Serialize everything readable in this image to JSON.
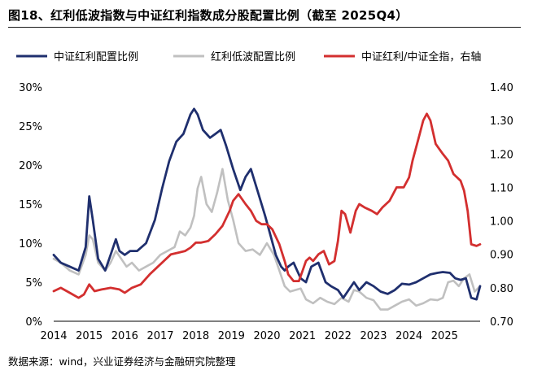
{
  "title": "图18、红利低波指数与中证红利指数成分股配置比例（截至 2025Q4）",
  "source": "数据来源：wind，兴业证券经济与金融研究院整理",
  "chart_data": {
    "type": "line",
    "title": "图18、红利低波指数与中证红利指数成分股配置比例（截至 2025Q4）",
    "legend_position": "top",
    "grid": false,
    "x_ticks": [
      "2014",
      "2015",
      "2016",
      "2017",
      "2018",
      "2019",
      "2020",
      "2021",
      "2022",
      "2023",
      "2024",
      "2025"
    ],
    "xlim": [
      2014.0,
      2026.0
    ],
    "y_left": {
      "ylim": [
        0,
        30
      ],
      "ticks": [
        "0%",
        "5%",
        "10%",
        "15%",
        "20%",
        "25%",
        "30%"
      ]
    },
    "y_right": {
      "ylim": [
        0.7,
        1.4
      ],
      "ticks": [
        "0.70",
        "0.80",
        "0.90",
        "1.00",
        "1.10",
        "1.20",
        "1.30",
        "1.40"
      ]
    },
    "series": [
      {
        "name": "中证红利配置比例",
        "color": "#1f2f6e",
        "axis": "left",
        "x": [
          2014.0,
          2014.2,
          2014.45,
          2014.7,
          2014.9,
          2015.0,
          2015.1,
          2015.25,
          2015.45,
          2015.6,
          2015.75,
          2015.85,
          2016.0,
          2016.15,
          2016.35,
          2016.6,
          2016.85,
          2017.05,
          2017.25,
          2017.45,
          2017.65,
          2017.85,
          2017.95,
          2018.05,
          2018.2,
          2018.4,
          2018.55,
          2018.7,
          2018.85,
          2019.05,
          2019.25,
          2019.4,
          2019.55,
          2019.75,
          2019.95,
          2020.1,
          2020.25,
          2020.4,
          2020.5,
          2020.6,
          2020.75,
          2020.85,
          2020.95,
          2021.1,
          2021.25,
          2021.45,
          2021.65,
          2021.8,
          2022.0,
          2022.15,
          2022.3,
          2022.45,
          2022.6,
          2022.8,
          2023.0,
          2023.2,
          2023.4,
          2023.6,
          2023.8,
          2024.0,
          2024.2,
          2024.4,
          2024.6,
          2024.8,
          2024.95,
          2025.15,
          2025.3,
          2025.45,
          2025.6,
          2025.75,
          2025.9,
          2026.0
        ],
        "values": [
          8.5,
          7.5,
          7.0,
          6.5,
          9.5,
          16.0,
          13.0,
          8.0,
          6.5,
          8.5,
          10.5,
          9.0,
          8.5,
          9.0,
          9.0,
          10.0,
          13.0,
          17.0,
          20.5,
          23.0,
          24.0,
          26.5,
          27.2,
          26.5,
          24.5,
          23.5,
          24.0,
          24.5,
          22.5,
          19.5,
          16.8,
          18.5,
          19.5,
          16.5,
          13.5,
          11.0,
          8.5,
          7.0,
          6.5,
          7.0,
          7.5,
          6.5,
          5.5,
          5.0,
          7.0,
          7.5,
          5.0,
          4.5,
          4.0,
          3.0,
          4.0,
          5.0,
          4.0,
          5.0,
          4.5,
          3.8,
          3.5,
          4.0,
          4.8,
          4.7,
          5.0,
          5.5,
          6.0,
          6.2,
          6.3,
          6.2,
          5.5,
          5.3,
          5.5,
          3.0,
          2.8,
          4.5
        ]
      },
      {
        "name": "红利低波配置比例",
        "color": "#c0c0c0",
        "axis": "left",
        "x": [
          2014.0,
          2014.2,
          2014.45,
          2014.7,
          2014.9,
          2015.0,
          2015.1,
          2015.25,
          2015.45,
          2015.6,
          2015.75,
          2015.9,
          2016.05,
          2016.2,
          2016.4,
          2016.6,
          2016.8,
          2017.0,
          2017.2,
          2017.4,
          2017.55,
          2017.7,
          2017.85,
          2017.95,
          2018.05,
          2018.15,
          2018.3,
          2018.45,
          2018.6,
          2018.75,
          2018.9,
          2019.05,
          2019.2,
          2019.4,
          2019.6,
          2019.8,
          2020.0,
          2020.2,
          2020.35,
          2020.5,
          2020.65,
          2020.8,
          2020.95,
          2021.1,
          2021.3,
          2021.5,
          2021.7,
          2021.9,
          2022.1,
          2022.3,
          2022.45,
          2022.6,
          2022.8,
          2023.0,
          2023.2,
          2023.4,
          2023.6,
          2023.8,
          2024.0,
          2024.2,
          2024.4,
          2024.6,
          2024.8,
          2024.95,
          2025.1,
          2025.25,
          2025.4,
          2025.55,
          2025.7,
          2025.85,
          2026.0
        ],
        "values": [
          8.0,
          7.5,
          6.5,
          6.0,
          8.5,
          11.0,
          10.5,
          7.5,
          6.5,
          7.5,
          9.0,
          8.0,
          7.0,
          7.5,
          6.5,
          7.0,
          7.5,
          8.5,
          9.0,
          9.5,
          11.5,
          11.0,
          12.0,
          13.5,
          17.0,
          18.5,
          15.0,
          14.0,
          16.5,
          19.5,
          15.5,
          13.0,
          10.0,
          9.0,
          9.2,
          8.5,
          10.0,
          8.5,
          6.5,
          4.5,
          3.8,
          4.0,
          4.2,
          2.8,
          2.3,
          3.0,
          2.5,
          2.2,
          3.0,
          2.5,
          4.0,
          3.8,
          3.0,
          2.7,
          1.5,
          1.5,
          2.0,
          2.5,
          2.8,
          2.0,
          2.3,
          2.8,
          2.7,
          3.0,
          5.0,
          5.2,
          4.5,
          5.5,
          6.0,
          3.8,
          4.5
        ]
      },
      {
        "name": "中证红利/中证全指，右轴",
        "color": "#d32f2f",
        "axis": "right",
        "x": [
          2014.0,
          2014.2,
          2014.45,
          2014.7,
          2014.85,
          2015.0,
          2015.15,
          2015.35,
          2015.6,
          2015.85,
          2016.0,
          2016.2,
          2016.45,
          2016.7,
          2016.9,
          2017.1,
          2017.3,
          2017.5,
          2017.7,
          2017.85,
          2018.0,
          2018.15,
          2018.35,
          2018.55,
          2018.75,
          2018.95,
          2019.05,
          2019.2,
          2019.4,
          2019.55,
          2019.7,
          2019.85,
          2020.0,
          2020.15,
          2020.35,
          2020.5,
          2020.6,
          2020.75,
          2020.9,
          2021.0,
          2021.1,
          2021.2,
          2021.3,
          2021.45,
          2021.6,
          2021.75,
          2021.9,
          2022.0,
          2022.1,
          2022.2,
          2022.35,
          2022.5,
          2022.6,
          2022.75,
          2022.95,
          2023.1,
          2023.25,
          2023.45,
          2023.65,
          2023.85,
          2024.0,
          2024.1,
          2024.2,
          2024.3,
          2024.4,
          2024.5,
          2024.6,
          2024.75,
          2024.95,
          2025.1,
          2025.25,
          2025.45,
          2025.55,
          2025.65,
          2025.75,
          2025.9,
          2026.0
        ],
        "values": [
          0.79,
          0.8,
          0.785,
          0.77,
          0.78,
          0.81,
          0.79,
          0.795,
          0.8,
          0.795,
          0.785,
          0.8,
          0.81,
          0.84,
          0.86,
          0.88,
          0.9,
          0.905,
          0.91,
          0.92,
          0.935,
          0.935,
          0.94,
          0.96,
          0.985,
          1.03,
          1.06,
          1.08,
          1.05,
          1.03,
          1.0,
          0.99,
          0.99,
          0.975,
          0.93,
          0.88,
          0.84,
          0.82,
          0.82,
          0.85,
          0.88,
          0.89,
          0.88,
          0.9,
          0.91,
          0.87,
          0.88,
          0.94,
          1.03,
          1.02,
          0.965,
          1.03,
          1.05,
          1.04,
          1.03,
          1.02,
          1.04,
          1.06,
          1.1,
          1.1,
          1.13,
          1.18,
          1.22,
          1.26,
          1.3,
          1.32,
          1.3,
          1.23,
          1.2,
          1.18,
          1.14,
          1.12,
          1.09,
          1.03,
          0.93,
          0.925,
          0.93
        ]
      }
    ]
  }
}
